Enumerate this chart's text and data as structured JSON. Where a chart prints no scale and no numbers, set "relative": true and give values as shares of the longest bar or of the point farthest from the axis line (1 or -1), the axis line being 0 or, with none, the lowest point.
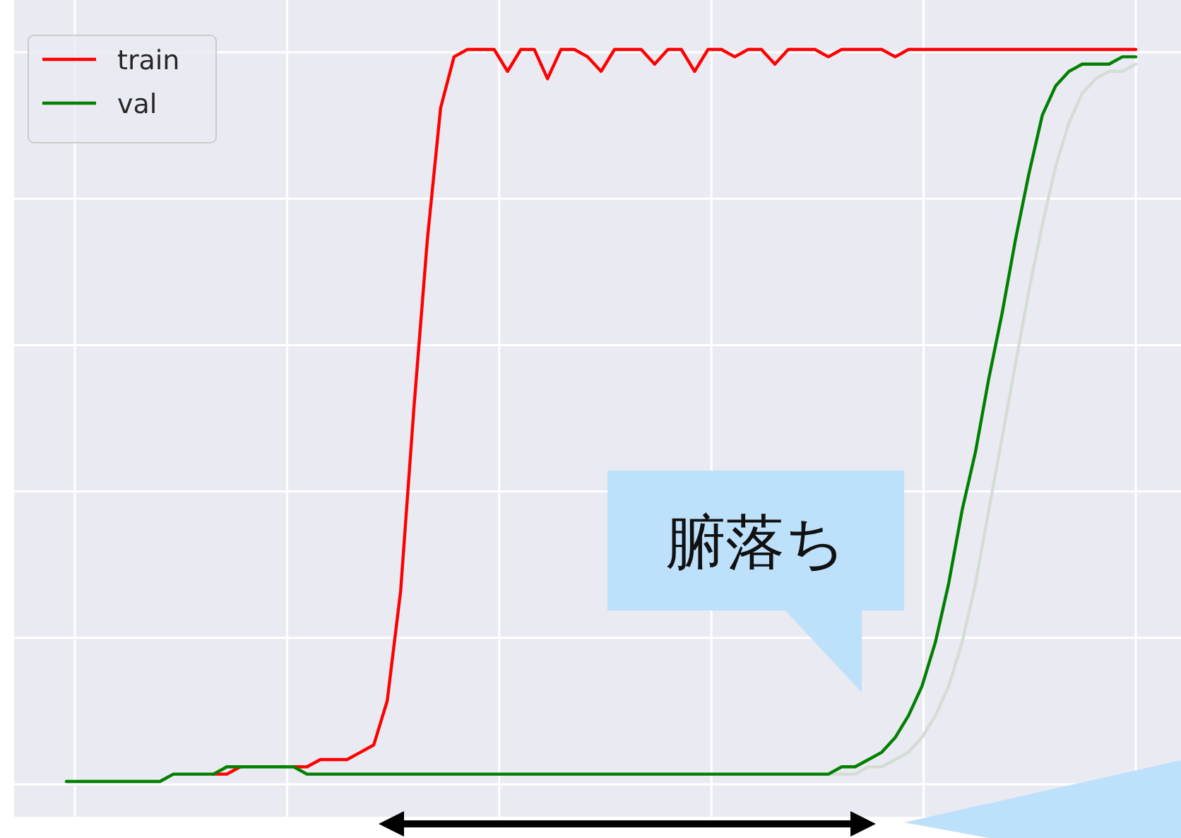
{
  "chart_data": {
    "type": "line",
    "relative": true,
    "grid": true,
    "legend": "top left",
    "categories": [
      null,
      null,
      null,
      null,
      null,
      null,
      null,
      null,
      null,
      null,
      null,
      null,
      null,
      null,
      null,
      null,
      null,
      null,
      null,
      null,
      null,
      null,
      null,
      null,
      null,
      null,
      null,
      null,
      null,
      null,
      null,
      null,
      null,
      null,
      null,
      null,
      null,
      null,
      null,
      null,
      null,
      null,
      null,
      null,
      null,
      null,
      null,
      null,
      null,
      null,
      null,
      null,
      null,
      null,
      null,
      null,
      null,
      null,
      null,
      null,
      null,
      null,
      null,
      null,
      null,
      null,
      null,
      null,
      null,
      null,
      null,
      null,
      null,
      null,
      null,
      null,
      null,
      null,
      null,
      null,
      null
    ],
    "series": [
      {
        "color": "#d3ddd6",
        "values": [
          0,
          0,
          0,
          0,
          0,
          0,
          0,
          0,
          0.01,
          0.01,
          0.01,
          0.01,
          0.02,
          0.02,
          0.02,
          0.02,
          0.02,
          0.02,
          0.01,
          0.01,
          0.01,
          0.01,
          0.01,
          0.01,
          0.01,
          0.01,
          0.01,
          0.01,
          0.01,
          0.01,
          0.01,
          0.01,
          0.01,
          0.01,
          0.01,
          0.01,
          0.01,
          0.01,
          0.01,
          0.01,
          0.01,
          0.01,
          0.01,
          0.01,
          0.01,
          0.01,
          0.01,
          0.01,
          0.01,
          0.01,
          0.01,
          0.01,
          0.01,
          0.01,
          0.01,
          0.01,
          0.01,
          0.01,
          0.01,
          0.01,
          0.02,
          0.02,
          0.03,
          0.04,
          0.06,
          0.09,
          0.13,
          0.19,
          0.27,
          0.37,
          0.47,
          0.57,
          0.67,
          0.76,
          0.84,
          0.9,
          0.94,
          0.96,
          0.97,
          0.97,
          0.98
        ]
      },
      {
        "name": "train",
        "color": "#ff0000",
        "values": [
          null,
          null,
          null,
          null,
          null,
          null,
          null,
          null,
          null,
          null,
          null,
          0.01,
          0.01,
          0.02,
          null,
          null,
          null,
          0.02,
          0.02,
          0.03,
          0.03,
          0.03,
          0.04,
          0.05,
          0.11,
          0.26,
          0.51,
          0.74,
          0.92,
          0.99,
          1,
          1,
          1,
          0.97,
          1,
          1,
          0.96,
          1,
          1,
          0.99,
          0.97,
          1,
          1,
          1,
          0.98,
          1,
          1,
          0.97,
          1,
          1,
          0.99,
          1,
          1,
          0.98,
          1,
          1,
          1,
          0.99,
          1,
          1,
          1,
          1,
          0.99,
          1,
          1,
          1,
          1,
          1,
          1,
          1,
          1,
          1,
          1,
          1,
          1,
          1,
          1,
          1,
          1,
          1,
          1
        ]
      },
      {
        "name": "val",
        "color": "#008000",
        "values": [
          0,
          0,
          0,
          0,
          0,
          0,
          0,
          0,
          0.01,
          0.01,
          0.01,
          0.01,
          0.02,
          0.02,
          0.02,
          0.02,
          0.02,
          0.02,
          0.01,
          0.01,
          0.01,
          0.01,
          0.01,
          0.01,
          0.01,
          0.01,
          0.01,
          0.01,
          0.01,
          0.01,
          0.01,
          0.01,
          0.01,
          0.01,
          0.01,
          0.01,
          0.01,
          0.01,
          0.01,
          0.01,
          0.01,
          0.01,
          0.01,
          0.01,
          0.01,
          0.01,
          0.01,
          0.01,
          0.01,
          0.01,
          0.01,
          0.01,
          0.01,
          0.01,
          0.01,
          0.01,
          0.01,
          0.01,
          0.02,
          0.02,
          0.03,
          0.04,
          0.06,
          0.09,
          0.13,
          0.19,
          0.27,
          0.37,
          0.45,
          0.55,
          0.64,
          0.74,
          0.83,
          0.91,
          0.95,
          0.97,
          0.98,
          0.98,
          0.98,
          0.99,
          0.99
        ]
      }
    ],
    "annotations": [
      "腑落ち"
    ]
  }
}
